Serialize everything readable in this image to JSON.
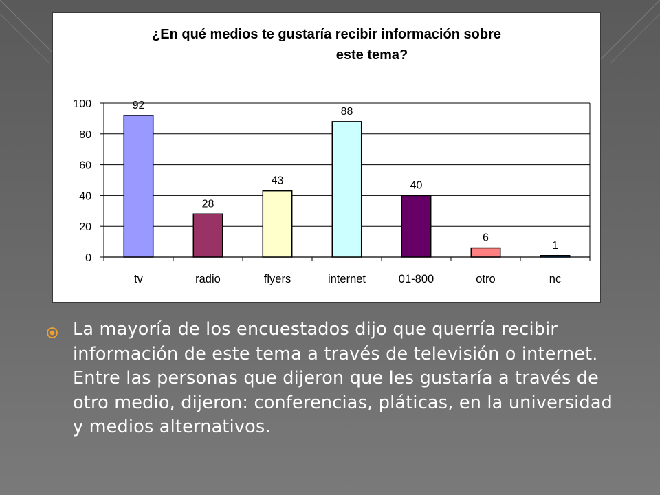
{
  "colors": {
    "background": "#666666",
    "panel": "#ffffff",
    "text": "#ffffff",
    "bullet": "#f0a030"
  },
  "chart_data": {
    "type": "bar",
    "title_lines": [
      "¿En qué medios te gustaría recibir información sobre",
      "este tema?"
    ],
    "categories": [
      "tv",
      "radio",
      "flyers",
      "internet",
      "01-800",
      "otro",
      "nc"
    ],
    "values": [
      92,
      28,
      43,
      88,
      40,
      6,
      1
    ],
    "colors": [
      "#9999ff",
      "#993366",
      "#ffffcc",
      "#ccffff",
      "#660066",
      "#ff8080",
      "#0066cc"
    ],
    "ylim": [
      0,
      100
    ],
    "yticks": [
      0,
      20,
      40,
      60,
      80,
      100
    ],
    "grid": true,
    "legend": "none",
    "xlabel": "",
    "ylabel": ""
  },
  "bullet": {
    "icon": "target-bullet-icon",
    "text": "La mayoría de los encuestados dijo que querría recibir información de este tema a través de televisión o internet. Entre las personas que dijeron que les gustaría a través de otro medio, dijeron: conferencias, pláticas, en la universidad y medios alternativos."
  }
}
